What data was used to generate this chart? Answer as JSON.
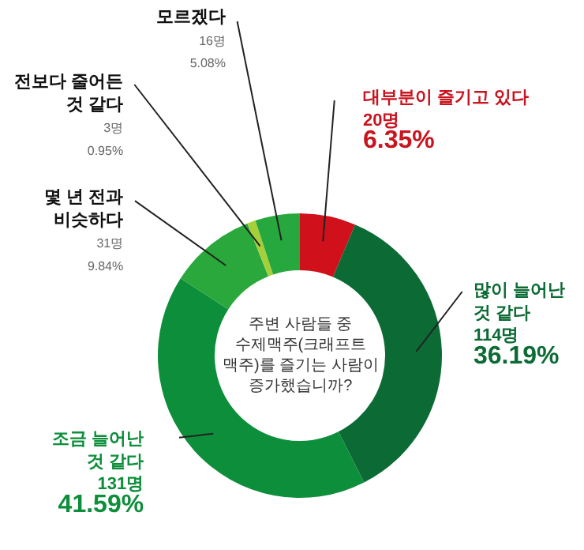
{
  "chart_data": {
    "type": "donut",
    "title": "주변 사람들 중\n수제맥주(크래프트\n맥주)를 즐기는 사람이\n증가했습니까?",
    "categories": [
      "대부분이 즐기고 있다",
      "많이 늘어난 것 같다",
      "조금 늘어난 것 같다",
      "몇 년 전과 비슷하다",
      "전보다 줄어든 것 같다",
      "모르겠다"
    ],
    "values": [
      20,
      114,
      131,
      31,
      3,
      16
    ],
    "value_labels": [
      "20명\n6.35%",
      "114명\n36.19%",
      "131명\n41.59%",
      "31명\n9.84%",
      "3명\n0.95%",
      "16명\n5.08%"
    ],
    "colors": [
      "#d0101a",
      "#0c6b35",
      "#0d8e3a",
      "#2aa83c",
      "#a6cf3a",
      "#27a83f"
    ],
    "legend": false
  }
}
